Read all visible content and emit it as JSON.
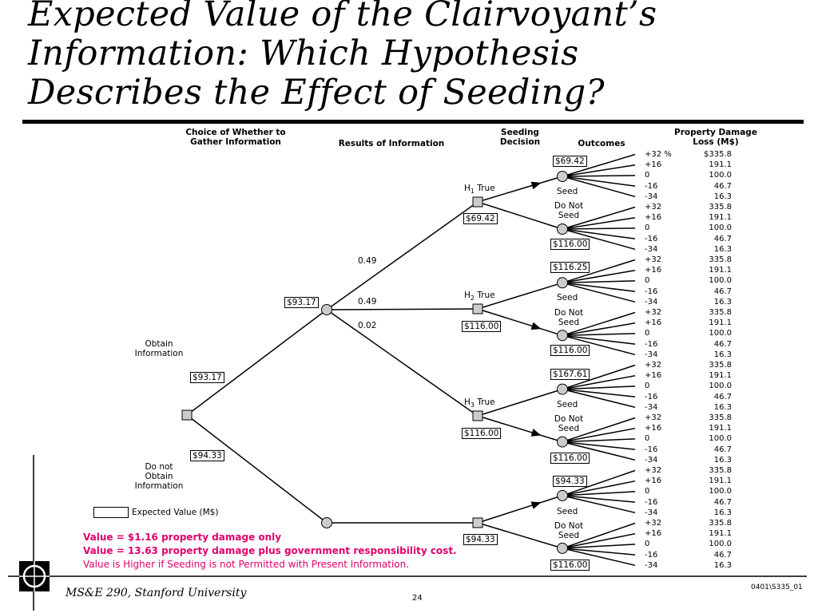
{
  "title_lines": [
    "Expected Value of the Clairvoyant’s",
    "Information:  Which Hypothesis",
    "Describes the Effect of Seeding?"
  ],
  "headers": {
    "choice": [
      "Choice of Whether to",
      "Gather Information"
    ],
    "results": "Results of Information",
    "seeding": [
      "Seeding",
      "Decision"
    ],
    "outcomes": "Outcomes",
    "damage": [
      "Property Damage",
      "Loss (M$)"
    ]
  },
  "obtain_info_label": [
    "Obtain",
    "Information"
  ],
  "not_obtain_label": [
    "Do not",
    "Obtain",
    "Information"
  ],
  "root_values": {
    "obtain": "$93.17",
    "not_obtain": "$94.33"
  },
  "chance_value": "$93.17",
  "probabilities": [
    "0.49",
    "0.49",
    "0.02"
  ],
  "hypotheses": [
    {
      "prefix": "H",
      "sub": "1",
      "suffix": " True",
      "value": "$69.42",
      "seed_value": "$69.42",
      "noseed_value": "$116.00"
    },
    {
      "prefix": "H",
      "sub": "2",
      "suffix": " True",
      "value": "$116.00",
      "seed_value": "$116.25",
      "noseed_value": "$116.00"
    },
    {
      "prefix": "H",
      "sub": "3",
      "suffix": " True",
      "value": "$116.00",
      "seed_value": "$167.61",
      "noseed_value": "$116.00"
    },
    {
      "prefix": "",
      "sub": "",
      "suffix": "",
      "value": "$94.33",
      "seed_value": "$94.33",
      "noseed_value": "$116.00"
    }
  ],
  "seed_label": "Seed",
  "noseed_label": [
    "Do Not",
    "Seed"
  ],
  "outcome_rows": [
    {
      "outcome": "+32 %",
      "loss": "$335.8"
    },
    {
      "outcome": "+16",
      "loss": "191.1"
    },
    {
      "outcome": "0",
      "loss": "100.0"
    },
    {
      "outcome": "-16",
      "loss": "46.7"
    },
    {
      "outcome": "-34",
      "loss": "16.3"
    },
    {
      "outcome": "+32",
      "loss": "335.8"
    },
    {
      "outcome": "+16",
      "loss": "191.1"
    },
    {
      "outcome": "0",
      "loss": "100.0"
    },
    {
      "outcome": "-16",
      "loss": "46.7"
    },
    {
      "outcome": "-34",
      "loss": "16.3"
    },
    {
      "outcome": "+32",
      "loss": "335.8"
    },
    {
      "outcome": "+16",
      "loss": "191.1"
    },
    {
      "outcome": "0",
      "loss": "100.0"
    },
    {
      "outcome": "-16",
      "loss": "46.7"
    },
    {
      "outcome": "-34",
      "loss": "16.3"
    },
    {
      "outcome": "+32",
      "loss": "335.8"
    },
    {
      "outcome": "+16",
      "loss": "191.1"
    },
    {
      "outcome": "0",
      "loss": "100.0"
    },
    {
      "outcome": "-16",
      "loss": "46.7"
    },
    {
      "outcome": "-34",
      "loss": "16.3"
    },
    {
      "outcome": "+32",
      "loss": "335.8"
    },
    {
      "outcome": "+16",
      "loss": "191.1"
    },
    {
      "outcome": "0",
      "loss": "100.0"
    },
    {
      "outcome": "-16",
      "loss": "46.7"
    },
    {
      "outcome": "-34",
      "loss": "16.3"
    },
    {
      "outcome": "+32",
      "loss": "335.8"
    },
    {
      "outcome": "+16",
      "loss": "191.1"
    },
    {
      "outcome": "0",
      "loss": "100.0"
    },
    {
      "outcome": "-16",
      "loss": "46.7"
    },
    {
      "outcome": "-34",
      "loss": "16.3"
    },
    {
      "outcome": "+32",
      "loss": "335.8"
    },
    {
      "outcome": "+16",
      "loss": "191.1"
    },
    {
      "outcome": "0",
      "loss": "100.0"
    },
    {
      "outcome": "-16",
      "loss": "46.7"
    },
    {
      "outcome": "-34",
      "loss": "16.3"
    },
    {
      "outcome": "+32",
      "loss": "335.8"
    },
    {
      "outcome": "+16",
      "loss": "191.1"
    },
    {
      "outcome": "0",
      "loss": "100.0"
    },
    {
      "outcome": "-16",
      "loss": "46.7"
    },
    {
      "outcome": "-34",
      "loss": "16.3"
    }
  ],
  "legend": "Expected Value (M$)",
  "notes": [
    "Value = $1.16 property damage only",
    "Value = 13.63 property damage plus government responsibility cost.",
    "Value is Higher if Seeding is not Permitted with Present Information."
  ],
  "footer": {
    "course": "MS&E 290, Stanford University",
    "page": "24",
    "code": "0401\\S335_01"
  },
  "colors": {
    "note": "#e0006c",
    "lines": "#000000"
  }
}
